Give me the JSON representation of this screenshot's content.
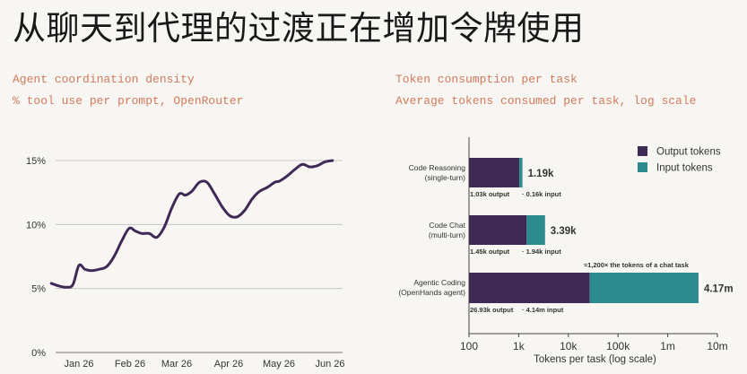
{
  "title": "从聊天到代理的过渡正在增加令牌使用",
  "left_panel": {
    "heading": "Agent coordination density",
    "subheading": "% tool use per prompt, OpenRouter"
  },
  "right_panel": {
    "heading": "Token consumption per task",
    "subheading": "Average tokens consumed per task, log scale"
  },
  "chart_data": [
    {
      "type": "line",
      "title": "Agent coordination density",
      "subtitle": "% tool use per prompt, OpenRouter",
      "xlabel": "",
      "ylabel": "",
      "x_tick_labels": [
        "Jan 26",
        "Feb 26",
        "Mar 26",
        "Apr 26",
        "May 26",
        "Jun 26"
      ],
      "y_tick_labels": [
        "0%",
        "5%",
        "10%",
        "15%"
      ],
      "ylim": [
        0,
        16
      ],
      "grid": true,
      "line_color": "#3f2a56",
      "series": [
        {
          "x": [
            -0.55,
            -0.4,
            -0.25,
            -0.12,
            0,
            0.12,
            0.25,
            0.4,
            0.55,
            0.7,
            0.85,
            1,
            1.12,
            1.25,
            1.4,
            1.55,
            1.7,
            1.85,
            2,
            2.12,
            2.25,
            2.4,
            2.55,
            2.7,
            2.85,
            3,
            3.15,
            3.3,
            3.45,
            3.6,
            3.75,
            3.9,
            4,
            4.15,
            4.3,
            4.45,
            4.6,
            4.75,
            4.9,
            5.05
          ],
          "values": [
            5.4,
            5.2,
            5.1,
            5.3,
            6.8,
            6.5,
            6.4,
            6.5,
            6.7,
            7.5,
            8.7,
            9.7,
            9.5,
            9.3,
            9.3,
            9.0,
            9.8,
            11.3,
            12.4,
            12.3,
            12.6,
            13.3,
            13.3,
            12.4,
            11.4,
            10.7,
            10.6,
            11.1,
            12.0,
            12.6,
            12.9,
            13.3,
            13.4,
            13.8,
            14.3,
            14.7,
            14.5,
            14.6,
            14.9,
            15.0
          ]
        }
      ]
    },
    {
      "type": "bar",
      "orientation": "horizontal",
      "stacked": true,
      "title": "Token consumption per task",
      "subtitle": "Average tokens consumed per task, log scale",
      "xlabel": "Tokens per task (log scale)",
      "x_scale": "log",
      "xlim": [
        100,
        10000000
      ],
      "x_tick_labels": [
        "100",
        "1k",
        "10k",
        "100k",
        "1m",
        "10m"
      ],
      "legend_position": "top-right",
      "categories": [
        "Code Reasoning\n(single-turn)",
        "Code Chat\n(multi-turn)",
        "Agentic Coding\n(OpenHands agent)"
      ],
      "series": [
        {
          "name": "Output tokens",
          "color": "#3f2a56",
          "values": [
            1030,
            1450,
            26930
          ]
        },
        {
          "name": "Input tokens",
          "color": "#2d8b8e",
          "values": [
            160,
            1940,
            4140000
          ]
        }
      ],
      "totals": [
        "1.19k",
        "3.39k",
        "4.17m"
      ],
      "output_labels": [
        "1.03k output",
        "1.45k output",
        "26.93k output"
      ],
      "input_labels": [
        "· 0.16k input",
        "· 1.94k input",
        "· 4.14m input"
      ],
      "annotation": "≈1,200× the tokens of a chat task",
      "annotation_color": "#c9554a"
    }
  ]
}
